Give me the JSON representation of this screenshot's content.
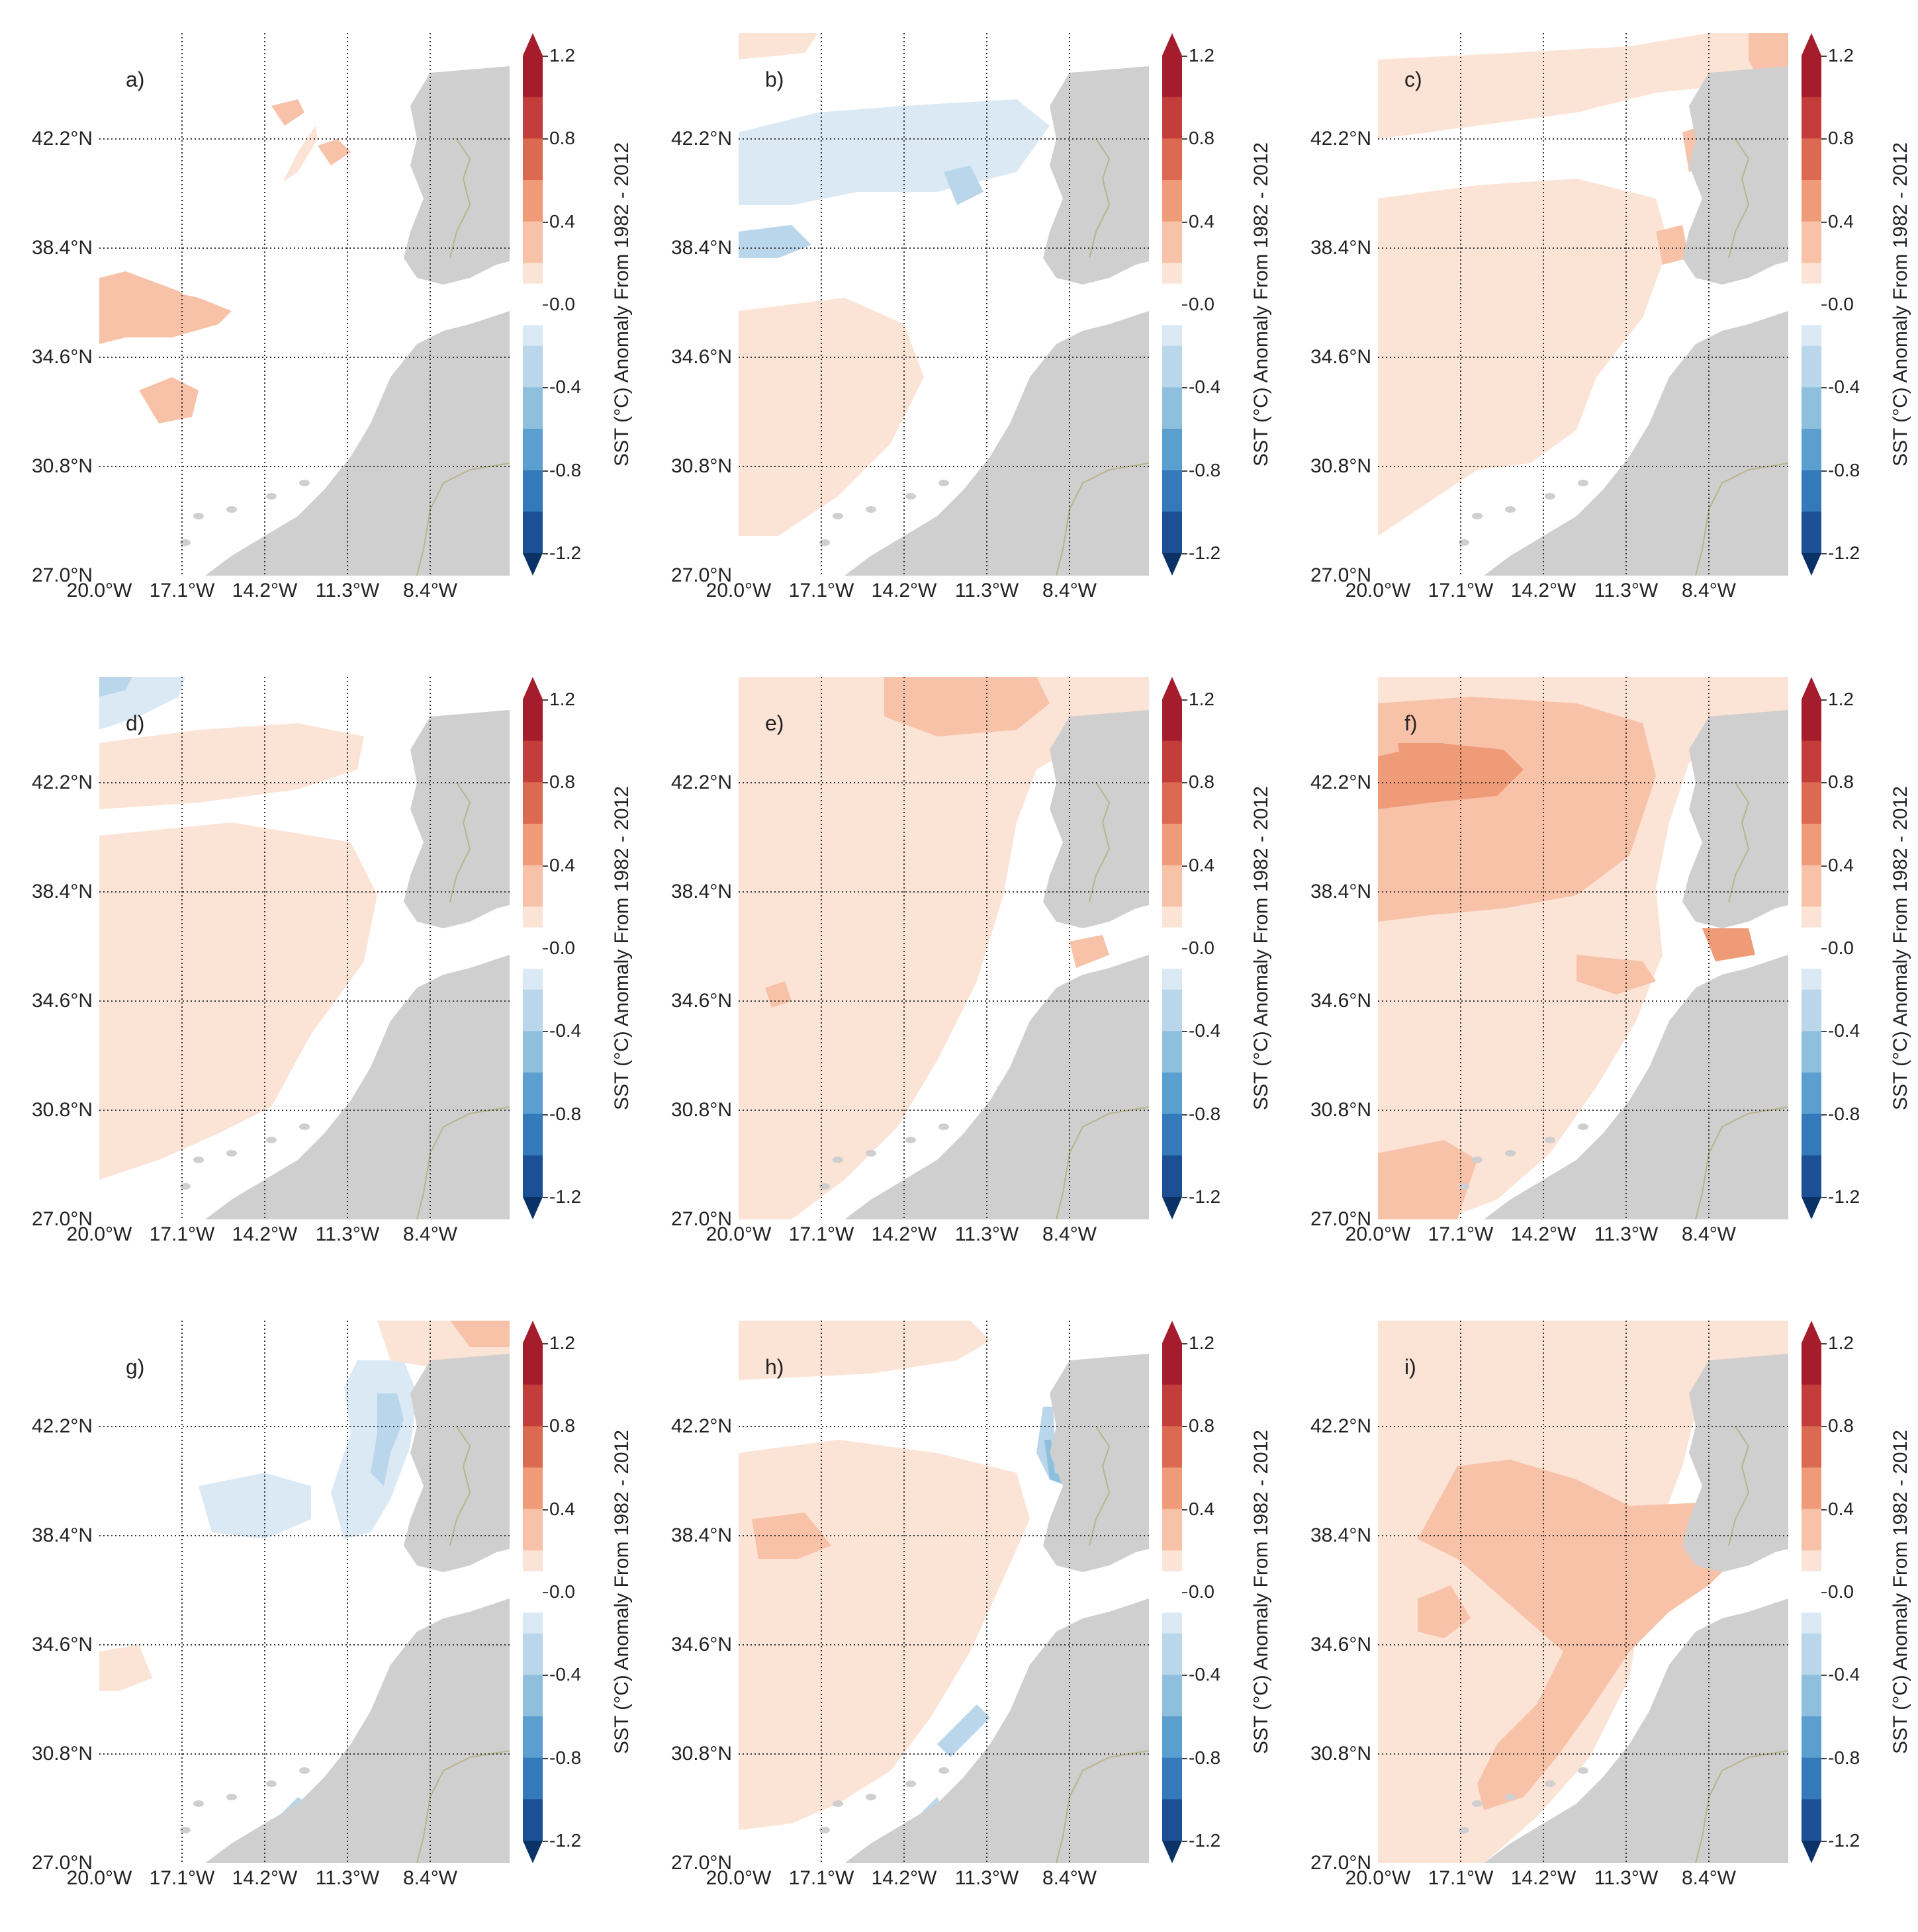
{
  "figure": {
    "panels": [
      {
        "label": "a)",
        "pattern": "warm-west"
      },
      {
        "label": "b)",
        "pattern": "cool-band"
      },
      {
        "label": "c)",
        "pattern": "weak-warm"
      },
      {
        "label": "d)",
        "pattern": "weak-warm-cool-nw"
      },
      {
        "label": "e)",
        "pattern": "moderate-warm"
      },
      {
        "label": "f)",
        "pattern": "strong-warm-north"
      },
      {
        "label": "g)",
        "pattern": "coastal-cool"
      },
      {
        "label": "h)",
        "pattern": "coastal-upwelling"
      },
      {
        "label": "i)",
        "pattern": "warm-south"
      }
    ],
    "lat_labels": [
      "42.2°N",
      "38.4°N",
      "34.6°N",
      "30.8°N",
      "27.0°N"
    ],
    "lon_labels": [
      "20.0°W",
      "17.1°W",
      "14.2°W",
      "11.3°W",
      "8.4°W"
    ],
    "colorbar": {
      "label": "SST (°C) Anomaly From 1982 - 2012",
      "ticks": [
        "1.2",
        "0.8",
        "0.4",
        "0.0",
        "-0.4",
        "-0.8",
        "-1.2"
      ],
      "levels": [
        -1.2,
        -1.0,
        -0.8,
        -0.6,
        -0.4,
        -0.2,
        0.2,
        0.4,
        0.6,
        0.8,
        1.0,
        1.2
      ],
      "colors_warm": [
        "#fbe3d6",
        "#f7c2a8",
        "#ef9b78",
        "#dc6a52",
        "#c33d3b",
        "#a51d2d"
      ],
      "colors_cool": [
        "#dbe9f4",
        "#bad6ea",
        "#8ec0de",
        "#5a9fcf",
        "#3479b9",
        "#1b5194",
        "#0b3266"
      ]
    },
    "land_color": "#cfcfcf",
    "ocean_color": "#ffffff"
  }
}
